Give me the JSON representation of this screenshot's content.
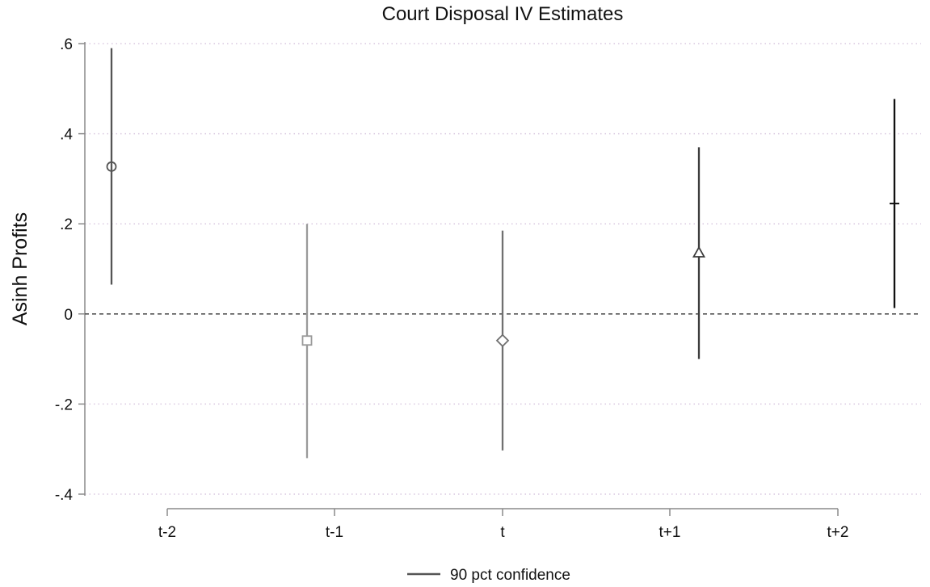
{
  "chart_data": {
    "type": "scatter",
    "title": "Court Disposal IV Estimates",
    "ylabel": "Asinh Profits",
    "xlabel": "",
    "ylim": [
      -0.4,
      0.6
    ],
    "y_ticks": [
      ".6",
      ".4",
      ".2",
      "0",
      "-.2",
      "-.4"
    ],
    "y_tick_values": [
      0.6,
      0.4,
      0.2,
      0,
      -0.2,
      -0.4
    ],
    "categories": [
      "t-2",
      "t-1",
      "t",
      "t+1",
      "t+2"
    ],
    "reference_line": 0,
    "grid": true,
    "series": [
      {
        "marker": "circle",
        "estimate": 0.327,
        "ci_low": 0.065,
        "ci_high": 0.59,
        "color": "#555555"
      },
      {
        "marker": "square",
        "estimate": -0.059,
        "ci_low": -0.32,
        "ci_high": 0.2,
        "color": "#9a9a9a"
      },
      {
        "marker": "diamond",
        "estimate": -0.059,
        "ci_low": -0.303,
        "ci_high": 0.185,
        "color": "#707070"
      },
      {
        "marker": "triangle",
        "estimate": 0.135,
        "ci_low": -0.1,
        "ci_high": 0.37,
        "color": "#3c3c3c"
      },
      {
        "marker": "plus",
        "estimate": 0.245,
        "ci_low": 0.013,
        "ci_high": 0.477,
        "color": "#111111"
      }
    ],
    "legend": {
      "label": "90 pct confidence",
      "position": "bottom"
    },
    "colors": {
      "grid": "#d9c8e0",
      "zero_line": "#555555",
      "axis": "#8a8a8a"
    }
  }
}
